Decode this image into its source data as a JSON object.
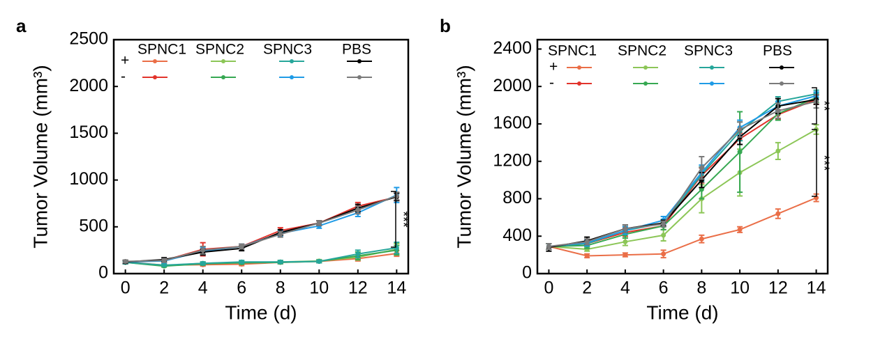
{
  "chart_data": [
    {
      "type": "line",
      "panel_label": "a",
      "x_label": "Time (d)",
      "y_label": "Tumor Volume (mm³)",
      "x": [
        0,
        2,
        4,
        6,
        8,
        10,
        12,
        14
      ],
      "xlim": [
        -0.6,
        14.6
      ],
      "xticks": [
        0,
        2,
        4,
        6,
        8,
        10,
        12,
        14
      ],
      "ylim": [
        0,
        2500
      ],
      "yticks": [
        0,
        500,
        1000,
        1500,
        2000,
        2500
      ],
      "legend_columns": [
        "SPNC1",
        "SPNC2",
        "SPNC3",
        "PBS"
      ],
      "legend_rows": [
        "+",
        "-"
      ],
      "annotations": [
        "***"
      ],
      "series": [
        {
          "color": "#ea6e47",
          "values": [
            125,
            90,
            95,
            100,
            120,
            130,
            160,
            215
          ],
          "errors": [
            15,
            10,
            15,
            15,
            15,
            15,
            25,
            30
          ]
        },
        {
          "color": "#e2332b",
          "values": [
            125,
            140,
            260,
            290,
            460,
            540,
            720,
            820
          ],
          "errors": [
            15,
            20,
            70,
            25,
            30,
            25,
            40,
            40
          ]
        },
        {
          "color": "#8cc657",
          "values": [
            120,
            85,
            110,
            120,
            125,
            135,
            175,
            260
          ],
          "errors": [
            15,
            10,
            15,
            15,
            15,
            15,
            30,
            60
          ]
        },
        {
          "color": "#36a852",
          "values": [
            120,
            80,
            105,
            115,
            120,
            130,
            190,
            250
          ],
          "errors": [
            15,
            10,
            15,
            15,
            15,
            15,
            40,
            50
          ]
        },
        {
          "color": "#26a69a",
          "values": [
            120,
            90,
            110,
            125,
            125,
            130,
            210,
            275
          ],
          "errors": [
            15,
            10,
            15,
            15,
            15,
            15,
            40,
            60
          ]
        },
        {
          "color": "#1f9be6",
          "values": [
            125,
            135,
            240,
            290,
            430,
            510,
            650,
            840
          ],
          "errors": [
            15,
            20,
            40,
            25,
            30,
            25,
            40,
            80
          ]
        },
        {
          "color": "#000000",
          "values": [
            125,
            150,
            230,
            270,
            440,
            540,
            700,
            820
          ],
          "errors": [
            15,
            20,
            30,
            25,
            30,
            25,
            40,
            40
          ]
        },
        {
          "color": "#7a7a7a",
          "values": [
            130,
            140,
            250,
            290,
            420,
            540,
            680,
            830
          ],
          "errors": [
            15,
            20,
            40,
            25,
            30,
            25,
            40,
            40
          ]
        }
      ]
    },
    {
      "type": "line",
      "panel_label": "b",
      "x_label": "Time (d)",
      "y_label": "Tumor Volume (mm³)",
      "x": [
        0,
        2,
        4,
        6,
        8,
        10,
        12,
        14
      ],
      "xlim": [
        -0.6,
        14.6
      ],
      "xticks": [
        0,
        2,
        4,
        6,
        8,
        10,
        12,
        14
      ],
      "ylim": [
        0,
        2500
      ],
      "yticks": [
        0,
        400,
        800,
        1200,
        1600,
        2000,
        2400
      ],
      "legend_columns": [
        "SPNC1",
        "SPNC2",
        "SPNC3",
        "PBS"
      ],
      "legend_rows": [
        "+",
        "-"
      ],
      "annotations": [
        "**",
        "***"
      ],
      "series": [
        {
          "color": "#ea6e47",
          "values": [
            290,
            190,
            200,
            210,
            370,
            470,
            640,
            810
          ],
          "errors": [
            30,
            20,
            20,
            40,
            40,
            30,
            50,
            40
          ]
        },
        {
          "color": "#e2332b",
          "values": [
            290,
            320,
            440,
            510,
            1050,
            1440,
            1700,
            1860
          ],
          "errors": [
            30,
            30,
            40,
            40,
            80,
            60,
            50,
            50
          ]
        },
        {
          "color": "#8cc657",
          "values": [
            290,
            260,
            340,
            410,
            800,
            1080,
            1310,
            1540
          ],
          "errors": [
            30,
            20,
            40,
            60,
            150,
            250,
            90,
            50
          ]
        },
        {
          "color": "#36a852",
          "values": [
            290,
            300,
            420,
            510,
            900,
            1300,
            1710,
            1880
          ],
          "errors": [
            30,
            30,
            40,
            40,
            100,
            430,
            70,
            50
          ]
        },
        {
          "color": "#26a69a",
          "values": [
            290,
            320,
            460,
            540,
            1060,
            1520,
            1840,
            1920
          ],
          "errors": [
            30,
            30,
            40,
            40,
            80,
            100,
            50,
            40
          ]
        },
        {
          "color": "#1f9be6",
          "values": [
            290,
            330,
            460,
            570,
            1080,
            1560,
            1790,
            1900
          ],
          "errors": [
            30,
            30,
            40,
            40,
            80,
            80,
            50,
            40
          ]
        },
        {
          "color": "#000000",
          "values": [
            280,
            350,
            480,
            540,
            1000,
            1460,
            1790,
            1860
          ],
          "errors": [
            40,
            40,
            40,
            30,
            80,
            80,
            80,
            50
          ]
        },
        {
          "color": "#7a7a7a",
          "values": [
            290,
            340,
            480,
            530,
            1130,
            1540,
            1740,
            1840
          ],
          "errors": [
            30,
            30,
            40,
            30,
            120,
            80,
            80,
            70
          ]
        }
      ]
    }
  ]
}
